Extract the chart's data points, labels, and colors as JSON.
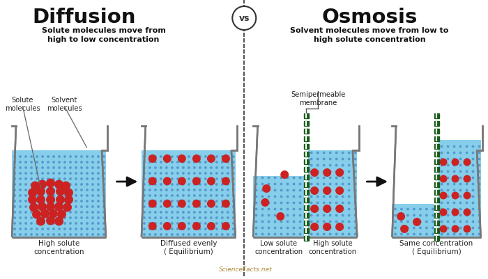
{
  "bg_color": "#ffffff",
  "title_diffusion": "Diffusion",
  "title_osmosis": "Osmosis",
  "vs_text": "vs",
  "subtitle_diffusion": "Solute molecules move from\nhigh to low concentration",
  "subtitle_osmosis": "Solvent molecules move from low to\nhigh solute concentration",
  "label_high_solute": "High solute\nconcentration",
  "label_diffused": "Diffused evenly\n( Equilibrium)",
  "label_low_solute": "Low solute\nconcentration",
  "label_high_solute2": "High solute\nconcentration",
  "label_same": "Same concentration\n( Equilibrium)",
  "label_solute_mol": "Solute\nmolecules",
  "label_solvent_mol": "Solvent\nmolecules",
  "label_membrane": "Semipermeable\nmembrane",
  "water_color": "#87CEEB",
  "solute_color": "#CC2222",
  "solvent_dot_color": "#5599CC",
  "membrane_color": "#1A5C1A",
  "beaker_color": "#777777",
  "arrow_color": "#111111",
  "title_color": "#111111",
  "footer": "ScienceFacts.net",
  "divider_color": "#555555"
}
